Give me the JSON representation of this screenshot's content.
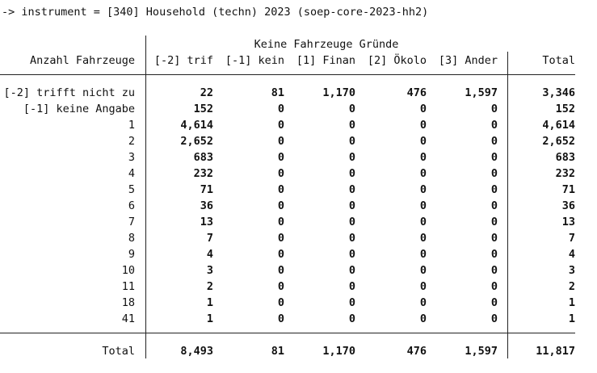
{
  "title": "-> instrument = [340] Household (techn) 2023 (soep-core-2023-hh2)",
  "group_header": "Keine Fahrzeuge Gründe",
  "row_header": "Anzahl Fahrzeuge",
  "columns": [
    "[-2] trif",
    "[-1] kein",
    "[1] Finan",
    "[2] Ökolo",
    "[3] Ander",
    "Total"
  ],
  "rows": [
    {
      "label": "[-2] trifft nicht zu",
      "values": [
        "22",
        "81",
        "1,170",
        "476",
        "1,597",
        "3,346"
      ]
    },
    {
      "label": "[-1] keine Angabe",
      "values": [
        "152",
        "0",
        "0",
        "0",
        "0",
        "152"
      ]
    },
    {
      "label": "1",
      "values": [
        "4,614",
        "0",
        "0",
        "0",
        "0",
        "4,614"
      ]
    },
    {
      "label": "2",
      "values": [
        "2,652",
        "0",
        "0",
        "0",
        "0",
        "2,652"
      ]
    },
    {
      "label": "3",
      "values": [
        "683",
        "0",
        "0",
        "0",
        "0",
        "683"
      ]
    },
    {
      "label": "4",
      "values": [
        "232",
        "0",
        "0",
        "0",
        "0",
        "232"
      ]
    },
    {
      "label": "5",
      "values": [
        "71",
        "0",
        "0",
        "0",
        "0",
        "71"
      ]
    },
    {
      "label": "6",
      "values": [
        "36",
        "0",
        "0",
        "0",
        "0",
        "36"
      ]
    },
    {
      "label": "7",
      "values": [
        "13",
        "0",
        "0",
        "0",
        "0",
        "13"
      ]
    },
    {
      "label": "8",
      "values": [
        "7",
        "0",
        "0",
        "0",
        "0",
        "7"
      ]
    },
    {
      "label": "9",
      "values": [
        "4",
        "0",
        "0",
        "0",
        "0",
        "4"
      ]
    },
    {
      "label": "10",
      "values": [
        "3",
        "0",
        "0",
        "0",
        "0",
        "3"
      ]
    },
    {
      "label": "11",
      "values": [
        "2",
        "0",
        "0",
        "0",
        "0",
        "2"
      ]
    },
    {
      "label": "18",
      "values": [
        "1",
        "0",
        "0",
        "0",
        "0",
        "1"
      ]
    },
    {
      "label": "41",
      "values": [
        "1",
        "0",
        "0",
        "0",
        "0",
        "1"
      ]
    }
  ],
  "total_row": {
    "label": "Total",
    "values": [
      "8,493",
      "81",
      "1,170",
      "476",
      "1,597",
      "11,817"
    ]
  }
}
